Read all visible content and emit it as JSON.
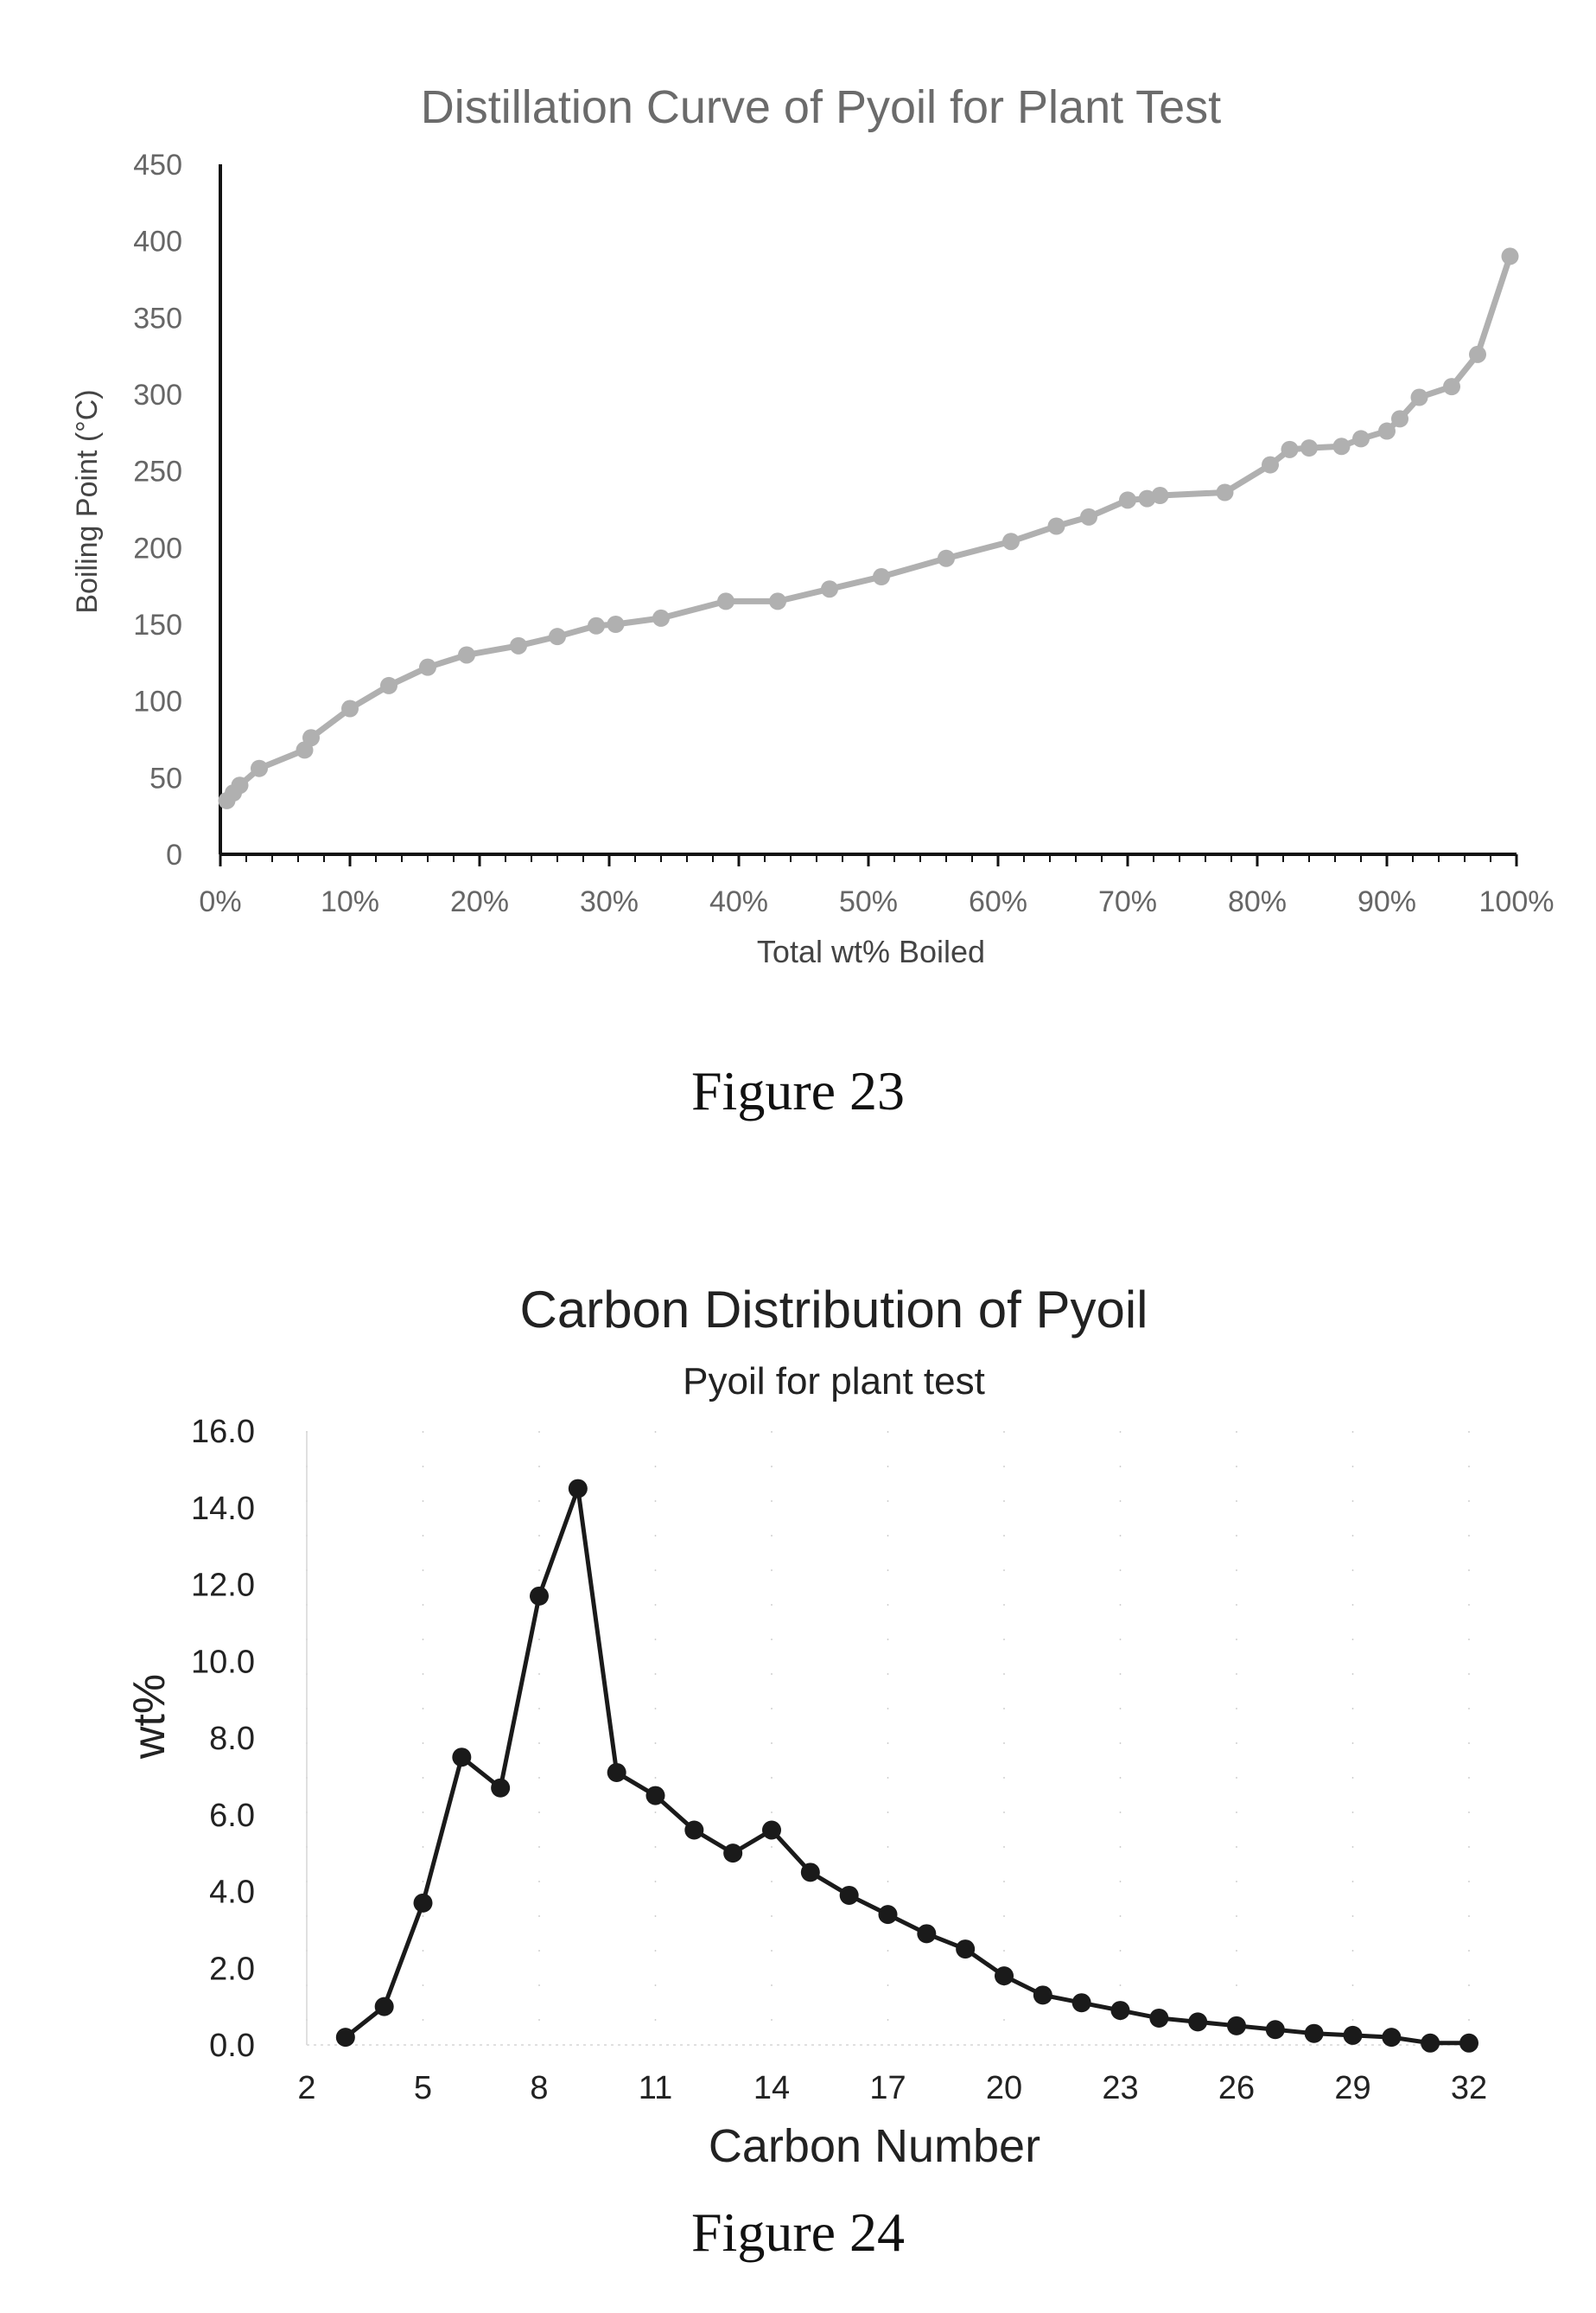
{
  "figures": [
    {
      "caption": "Figure 23"
    },
    {
      "caption": "Figure 24"
    }
  ],
  "chart_data": [
    {
      "type": "line",
      "title": "Distillation Curve of Pyoil for Plant Test",
      "xlabel": "Total wt% Boiled",
      "ylabel": "Boiling Point (°C)",
      "xlim": [
        0,
        100
      ],
      "ylim": [
        0,
        450
      ],
      "xticks": [
        "0%",
        "10%",
        "20%",
        "30%",
        "40%",
        "50%",
        "60%",
        "70%",
        "80%",
        "90%",
        "100%"
      ],
      "yticks": [
        "0",
        "50",
        "100",
        "150",
        "200",
        "250",
        "300",
        "350",
        "400",
        "450"
      ],
      "grid": false,
      "legend": "none",
      "color": "#b0b0b0",
      "series": [
        {
          "x": [
            0.5,
            1,
            1.5,
            3,
            6.5,
            7,
            10,
            13,
            16,
            19,
            23,
            26,
            29,
            30.5,
            34,
            39,
            43,
            47,
            51,
            56,
            61,
            64.5,
            67,
            70,
            71.5,
            72.5,
            77.5,
            81,
            82.5,
            84,
            86.5,
            88,
            90,
            91,
            92.5,
            95,
            97,
            99.5
          ],
          "y": [
            35,
            40,
            45,
            56,
            68,
            76,
            95,
            110,
            122,
            130,
            136,
            142,
            149,
            150,
            154,
            165,
            165,
            173,
            181,
            193,
            204,
            214,
            220,
            231,
            232,
            234,
            236,
            254,
            264,
            265,
            266,
            271,
            276,
            284,
            298,
            305,
            326,
            390
          ]
        }
      ]
    },
    {
      "type": "line",
      "title": "Carbon Distribution of Pyoil",
      "subtitle": "Pyoil for plant test",
      "xlabel": "Carbon Number",
      "ylabel": "wt%",
      "xlim": [
        2,
        32
      ],
      "ylim": [
        0,
        16
      ],
      "xticks": [
        "2",
        "5",
        "8",
        "11",
        "14",
        "17",
        "20",
        "23",
        "26",
        "29",
        "32"
      ],
      "yticks": [
        "0.0",
        "2.0",
        "4.0",
        "6.0",
        "8.0",
        "10.0",
        "12.0",
        "14.0",
        "16.0"
      ],
      "grid": true,
      "legend": "none",
      "color": "#1a1a1a",
      "series": [
        {
          "x": [
            3,
            4,
            5,
            6,
            7,
            8,
            9,
            10,
            11,
            12,
            13,
            14,
            15,
            16,
            17,
            18,
            19,
            20,
            21,
            22,
            23,
            24,
            25,
            26,
            27,
            28,
            29,
            30,
            31,
            32
          ],
          "y": [
            0.2,
            1.0,
            3.7,
            7.5,
            6.7,
            11.7,
            14.5,
            7.1,
            6.5,
            5.6,
            5.0,
            5.6,
            4.5,
            3.9,
            3.4,
            2.9,
            2.5,
            1.8,
            1.3,
            1.1,
            0.9,
            0.7,
            0.6,
            0.5,
            0.4,
            0.3,
            0.25,
            0.2,
            0.05,
            0.05
          ]
        }
      ]
    }
  ]
}
